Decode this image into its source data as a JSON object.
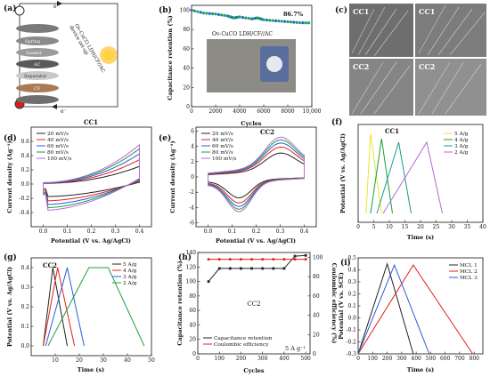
{
  "panels": [
    {
      "id": "a",
      "label": "(a)",
      "caption_lines": [
        "Ov-CuCO LDH/CF//AC",
        "device set-up"
      ],
      "electron_labels": [
        "e⁻",
        "e⁻"
      ],
      "layers": [
        "AC",
        "Separator",
        "Gasket",
        "Spring",
        "CF"
      ]
    },
    {
      "id": "b",
      "label": "(b)",
      "inset_text": "Ov-CuCO LDH/CF//AC",
      "annotation": "86.7%"
    },
    {
      "id": "c",
      "label": "(c)",
      "image_labels": [
        "CC1",
        "CC1",
        "CC2",
        "CC2"
      ]
    },
    {
      "id": "d",
      "label": "(d)",
      "title": "CC1"
    },
    {
      "id": "e",
      "label": "(e)",
      "title": "CC2"
    },
    {
      "id": "f",
      "label": "(f)",
      "title": "CC1"
    },
    {
      "id": "g",
      "label": "(g)",
      "title": "CC2"
    },
    {
      "id": "h",
      "label": "(h)",
      "title": "CC2",
      "annotation": "5 A g⁻¹"
    },
    {
      "id": "i",
      "label": "(i)"
    }
  ],
  "chart_data": [
    {
      "id": "b",
      "type": "scatter",
      "xlabel": "Cycles",
      "ylabel": "Capacitance retention (%)",
      "xlim": [
        0,
        10000
      ],
      "ylim": [
        0,
        105
      ],
      "xticks": [
        "0",
        "2000",
        "4000",
        "6000",
        "8000",
        "10,000"
      ],
      "yticks": [
        "0",
        "20",
        "40",
        "60",
        "80",
        "100"
      ],
      "series": [
        {
          "x": [
            0,
            1000,
            2000,
            3000,
            3500,
            4000,
            5000,
            5500,
            6000,
            7000,
            8000,
            9000,
            10000
          ],
          "y": [
            100,
            97,
            96,
            94,
            92,
            93,
            91,
            92,
            90,
            89,
            88,
            87,
            86.7
          ]
        }
      ]
    },
    {
      "id": "d",
      "type": "line",
      "xlabel": "Potential (V vs. Ag/AgCl)",
      "ylabel": "Current density (Ag⁻¹)",
      "xlim": [
        -0.05,
        0.45
      ],
      "ylim": [
        -0.6,
        0.8
      ],
      "xticks": [
        "0.0",
        "0.1",
        "0.2",
        "0.3",
        "0.4"
      ],
      "yticks": [
        "-0.4",
        "-0.2",
        "0.0",
        "0.2",
        "0.4",
        "0.6"
      ],
      "series": [
        {
          "name": "20 mV/s",
          "s": 0.45
        },
        {
          "name": "40 mV/s",
          "s": 0.62
        },
        {
          "name": "60 mV/s",
          "s": 0.77
        },
        {
          "name": "80 mV/s",
          "s": 0.9
        },
        {
          "name": "100 mV/s",
          "s": 1.0
        }
      ]
    },
    {
      "id": "e",
      "type": "line",
      "xlabel": "Potential (V vs. Ag/AgCl)",
      "ylabel": "Current density (Ag⁻¹)",
      "xlim": [
        -0.05,
        0.45
      ],
      "ylim": [
        -6.5,
        6.5
      ],
      "xticks": [
        "0.0",
        "0.1",
        "0.2",
        "0.3",
        "0.4"
      ],
      "yticks": [
        "-6",
        "-4",
        "-2",
        "0",
        "2",
        "4",
        "6"
      ],
      "series": [
        {
          "name": "20 mV/s",
          "s": 0.6
        },
        {
          "name": "40 mV/s",
          "s": 0.75
        },
        {
          "name": "60 mV/s",
          "s": 0.85
        },
        {
          "name": "80 mV/s",
          "s": 0.93
        },
        {
          "name": "100 mV/s",
          "s": 1.0
        }
      ]
    },
    {
      "id": "f",
      "type": "line",
      "xlabel": "Time (s)",
      "ylabel": "Potential (V vs. Ag/AgCl)",
      "xlim": [
        0,
        40
      ],
      "ylim": [
        -0.05,
        0.5
      ],
      "xticks": [
        "0",
        "5",
        "10",
        "15",
        "20",
        "25",
        "30",
        "35",
        "40"
      ],
      "yticks": [],
      "series": [
        {
          "name": "5 A/g",
          "x": [
            2.5,
            4,
            7.5
          ],
          "y": [
            0,
            0.45,
            0
          ]
        },
        {
          "name": "4 A/g",
          "x": [
            4,
            7.5,
            11
          ],
          "y": [
            0,
            0.42,
            0
          ]
        },
        {
          "name": "3 A/g",
          "x": [
            6,
            13,
            17
          ],
          "y": [
            0,
            0.4,
            0
          ]
        },
        {
          "name": "2 A/g",
          "x": [
            8,
            22,
            27
          ],
          "y": [
            0,
            0.4,
            0
          ]
        }
      ]
    },
    {
      "id": "g",
      "type": "line",
      "xlabel": "Time (s)",
      "ylabel": "Potential (V vs. Ag/AgCl)",
      "xlim": [
        0,
        50
      ],
      "ylim": [
        -0.05,
        0.45
      ],
      "xticks": [
        "10",
        "20",
        "30",
        "40",
        "50"
      ],
      "yticks": [
        "0.0",
        "0.1",
        "0.2",
        "0.3",
        "0.4"
      ],
      "series": [
        {
          "name": "5 A/g",
          "x": [
            5,
            9,
            15
          ],
          "y": [
            0,
            0.4,
            0
          ]
        },
        {
          "name": "4 A/g",
          "x": [
            5,
            11,
            18
          ],
          "y": [
            0,
            0.4,
            0
          ]
        },
        {
          "name": "3 A/g",
          "x": [
            6,
            15,
            22
          ],
          "y": [
            0,
            0.4,
            0
          ]
        },
        {
          "name": "2 A/g",
          "x": [
            7,
            24,
            32,
            47
          ],
          "y": [
            0,
            0.4,
            0.4,
            0
          ]
        }
      ]
    },
    {
      "id": "h",
      "type": "line",
      "xlabel": "Cycles",
      "ylabel": "Capacitance retention (%)",
      "y2label": "Coulombic efficiency (%)",
      "xlim": [
        0,
        520
      ],
      "ylim": [
        0,
        140
      ],
      "y2lim": [
        0,
        105
      ],
      "xticks": [
        "0",
        "100",
        "200",
        "300",
        "400",
        "500"
      ],
      "yticks": [
        "0",
        "20",
        "40",
        "60",
        "80",
        "100",
        "120",
        "140"
      ],
      "y2ticks": [
        "0",
        "20",
        "40",
        "60",
        "80",
        "100"
      ],
      "series": [
        {
          "name": "Capacitance retention",
          "x": [
            50,
            100,
            150,
            200,
            250,
            300,
            350,
            400,
            450,
            500
          ],
          "y": [
            100,
            118,
            118,
            118,
            118,
            118,
            118,
            118,
            135,
            136
          ]
        },
        {
          "name": "Coulombic efficiency",
          "x": [
            50,
            100,
            150,
            200,
            250,
            300,
            350,
            400,
            450,
            500
          ],
          "y": [
            98,
            98,
            98,
            98,
            98,
            98,
            98,
            98,
            98,
            98
          ]
        }
      ]
    },
    {
      "id": "i",
      "type": "line",
      "xlabel": "Time (s)",
      "ylabel": "Potential (V vs. SCE)",
      "xlim": [
        0,
        860
      ],
      "ylim": [
        -0.3,
        0.5
      ],
      "xticks": [
        "0",
        "100",
        "200",
        "300",
        "400",
        "500",
        "600",
        "700",
        "800"
      ],
      "yticks": [
        "-0.3",
        "-0.2",
        "-0.1",
        "0.0",
        "0.1",
        "0.2",
        "0.3",
        "0.4",
        "0.5"
      ],
      "series": [
        {
          "name": "MCL 1",
          "x": [
            0,
            200,
            380
          ],
          "y": [
            -0.3,
            0.45,
            -0.3
          ]
        },
        {
          "name": "MCL 2",
          "x": [
            0,
            380,
            790
          ],
          "y": [
            -0.3,
            0.44,
            -0.3
          ]
        },
        {
          "name": "MCL 3",
          "x": [
            0,
            250,
            490
          ],
          "y": [
            -0.3,
            0.44,
            -0.3
          ]
        }
      ]
    }
  ],
  "colors": {
    "black": "#222222",
    "red": "#e32119",
    "blue": "#2a5bd7",
    "green": "#1e9e3f",
    "purple": "#b86ad8",
    "yellow": "#e8e82a",
    "teal": "#169c8c"
  }
}
